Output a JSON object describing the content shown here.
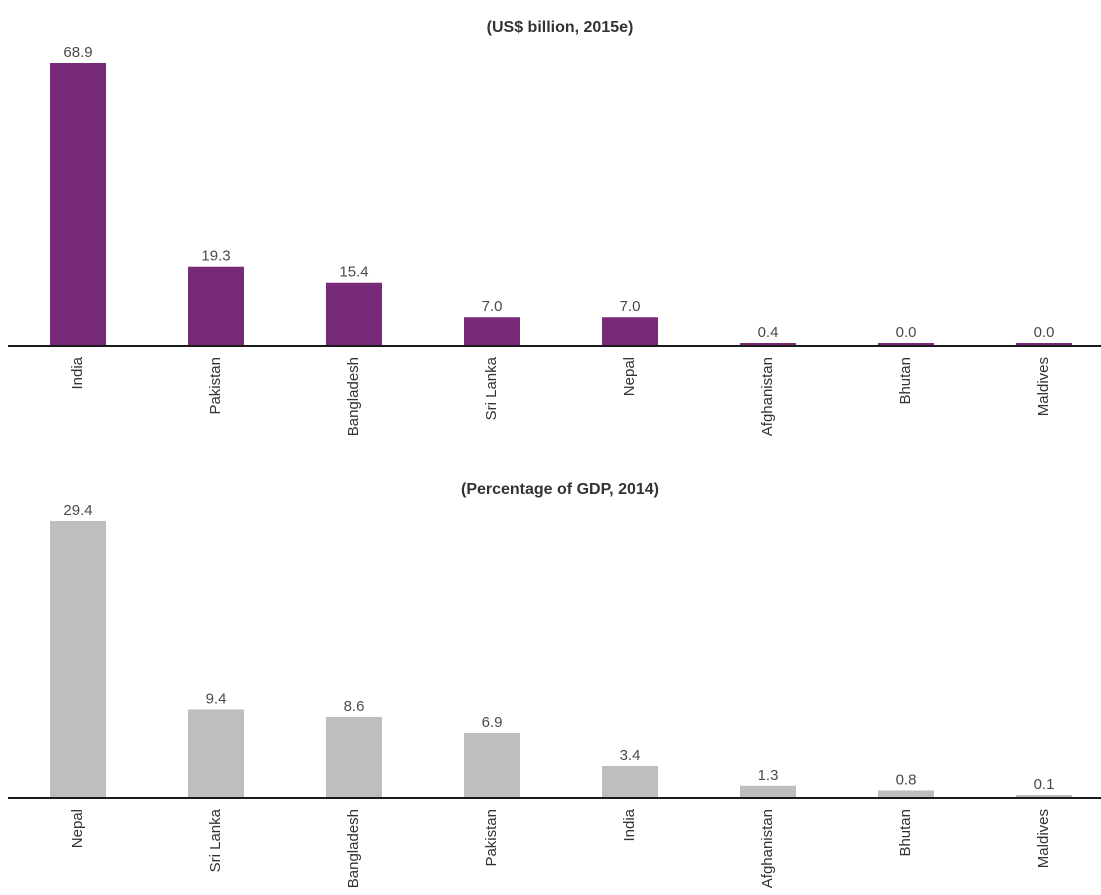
{
  "chart_data": [
    {
      "type": "bar",
      "title": "(US$ billion, 2015e)",
      "xlabel": "",
      "ylabel": "",
      "categories": [
        "India",
        "Pakistan",
        "Bangladesh",
        "Sri Lanka",
        "Nepal",
        "Afghanistan",
        "Bhutan",
        "Maldives"
      ],
      "values": [
        68.9,
        19.3,
        15.4,
        7.0,
        7.0,
        0.4,
        0.0,
        0.0
      ],
      "value_labels": [
        "68.9",
        "19.3",
        "15.4",
        "7.0",
        "7.0",
        "0.4",
        "0.0",
        "0.0"
      ],
      "ylim": [
        0,
        70
      ],
      "grid": false,
      "legend": "none",
      "bar_color": "#772a78"
    },
    {
      "type": "bar",
      "title": "(Percentage of GDP, 2014)",
      "xlabel": "",
      "ylabel": "",
      "categories": [
        "Nepal",
        "Sri Lanka",
        "Bangladesh",
        "Pakistan",
        "India",
        "Afghanistan",
        "Bhutan",
        "Maldives"
      ],
      "values": [
        29.4,
        9.4,
        8.6,
        6.9,
        3.4,
        1.3,
        0.8,
        0.1
      ],
      "value_labels": [
        "29.4",
        "9.4",
        "8.6",
        "6.9",
        "3.4",
        "1.3",
        "0.8",
        "0.1"
      ],
      "ylim": [
        0,
        30
      ],
      "grid": false,
      "legend": "none",
      "bar_color": "#c0bdbd"
    }
  ]
}
